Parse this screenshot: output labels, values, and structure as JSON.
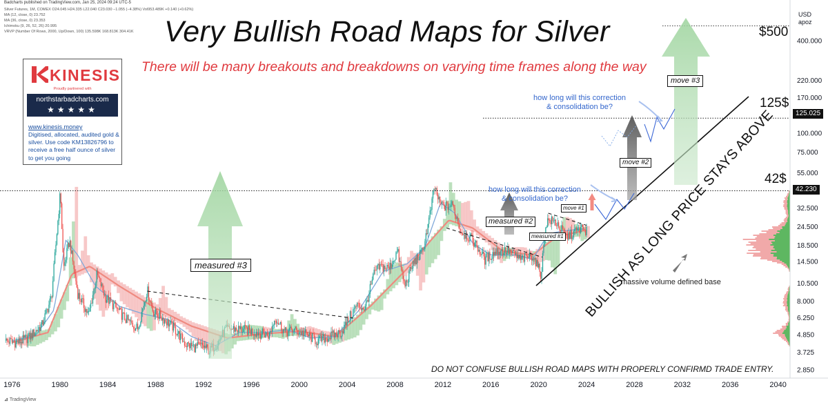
{
  "header": {
    "published": "Badcharts published on TradingView.com, Jan 25, 2024 09:24 UTC-5",
    "symbol_line": "Silver Futures, 1M, COMEX  O24.045 H24.335 L22.040 C23.030 −1.055 (−4.38%) Vol953.489K +0.140 (+0.62%)",
    "ma12": "MA (12, close, 0)  23.752",
    "ma36": "MA (36, close, 0)  23.353",
    "ichimoku": "Ichimoku (9, 26, 52, 26)  20.995",
    "vrvp": "VRVP (Number Of Rows, 2000, Up/Down, 100)  135.598K  168.813K  304.41K"
  },
  "title": "Very Bullish Road Maps for Silver",
  "subtitle": "There will be many breakouts and breakdowns on varying time frames along the way",
  "promo": {
    "brand": "KINESIS",
    "partner": "Proudly partnered with",
    "site": "northstarbadcharts.com",
    "stars": "★★★★★",
    "url": "www.kinesis.money",
    "text": "Digitised, allocated, audited gold & silver. Use code KM13826796 to receive a free half ounce of silver to get you going"
  },
  "annotations": {
    "measured3": "measured #3",
    "measured2": "measured #2",
    "measured1": "measured #1",
    "move1": "move #1",
    "move2": "move #2",
    "move3": "move #3",
    "correction1": "how long will this correction\n& consolidation be?",
    "correction2": "how long will this correction\n& consolidation be?",
    "diag": "BULLISH AS LONG PRICE STAYS ABOVE",
    "volume": "massive volume defined base",
    "disclaimer": "DO NOT CONFUSE BULLISH ROAD MAPS WITH PROPERLY CONFIRMD TRADE ENTRY.",
    "level500": "$500",
    "level125": "125$",
    "level42": "42$"
  },
  "axis": {
    "unit_line1": "USD",
    "unit_line2": "apoz",
    "price_tags": [
      "125.025",
      "42.230"
    ]
  },
  "footer": {
    "tv": "TradingView"
  },
  "colors": {
    "bull": "#26a69a",
    "bear": "#ef5350",
    "cloud_green": "#a5d6a7",
    "cloud_red": "#f4b6b6",
    "ma12": "#7fa8d9",
    "ma36": "#ef8a80",
    "volume_green": "#4caf50",
    "volume_red": "#ef9a9a",
    "accent_red": "#e03a3f",
    "note_blue": "#3366cc"
  },
  "chart_data": {
    "type": "line",
    "title": "Very Bullish Road Maps for Silver",
    "xlabel": "",
    "ylabel": "USD apoz",
    "scale": "log",
    "xlim": [
      1975,
      2041
    ],
    "ylim": [
      2.6,
      700
    ],
    "x_ticks": [
      "1976",
      "1980",
      "1984",
      "1988",
      "1992",
      "1996",
      "2000",
      "2004",
      "2008",
      "2012",
      "2016",
      "2020",
      "2024",
      "2028",
      "2032",
      "2036",
      "2040"
    ],
    "y_ticks": [
      "400.000",
      "220.000",
      "170.000",
      "100.000",
      "75.000",
      "55.000",
      "32.500",
      "24.500",
      "18.500",
      "14.500",
      "10.500",
      "8.000",
      "6.250",
      "4.850",
      "3.725",
      "2.850"
    ],
    "series": [
      {
        "name": "Silver Futures (monthly close)",
        "x": [
          1975.5,
          1976.5,
          1977.5,
          1978.5,
          1979.3,
          1979.8,
          1980.05,
          1980.3,
          1980.8,
          1981.5,
          1982.4,
          1983.1,
          1983.8,
          1984.5,
          1985.5,
          1986.5,
          1987.3,
          1987.8,
          1988.5,
          1989.5,
          1990.5,
          1991.3,
          1991.9,
          1992.5,
          1993.2,
          1993.8,
          1994.5,
          1995.5,
          1996.5,
          1997.5,
          1998.0,
          1998.8,
          1999.5,
          2000.5,
          2001.5,
          2002.5,
          2003.5,
          2004.3,
          2004.8,
          2005.5,
          2006.3,
          2006.8,
          2007.5,
          2008.2,
          2008.8,
          2009.5,
          2010.3,
          2010.8,
          2011.3,
          2011.7,
          2012.3,
          2012.8,
          2013.5,
          2014.5,
          2015.5,
          2016.5,
          2017.5,
          2018.5,
          2019.5,
          2020.2,
          2020.6,
          2020.9,
          2021.5,
          2022.3,
          2022.8,
          2023.5,
          2024.05
        ],
        "values": [
          4.4,
          4.3,
          4.7,
          5.6,
          8.5,
          25,
          42,
          13,
          20,
          9,
          6.5,
          12,
          8.5,
          7.5,
          6.1,
          5.3,
          9.5,
          6.8,
          6.3,
          5.4,
          4.2,
          4.0,
          4.1,
          3.8,
          4.3,
          5.2,
          5.3,
          5.2,
          5.0,
          4.8,
          6.3,
          5.0,
          5.2,
          4.9,
          4.4,
          4.7,
          5.0,
          6.5,
          7.5,
          7.2,
          12.5,
          13.5,
          13.1,
          17,
          10,
          14,
          17,
          26,
          45,
          35,
          33,
          34,
          23,
          20,
          15,
          17,
          17,
          15,
          16,
          12,
          26,
          27,
          26,
          21,
          22,
          24,
          23
        ]
      },
      {
        "name": "MA (12, close, 0)",
        "x": [
          1976,
          1978,
          1979.5,
          1980.5,
          1981.5,
          1983,
          1985,
          1987,
          1989,
          1991,
          1993,
          1995,
          1997,
          1999,
          2001,
          2003,
          2005,
          2007,
          2009,
          2010.5,
          2011.8,
          2013,
          2014.5,
          2016,
          2018,
          2019.5,
          2020.8,
          2022,
          2024
        ],
        "values": [
          4.4,
          4.8,
          7,
          20,
          16,
          10,
          7.4,
          6.6,
          6.1,
          4.7,
          4.1,
          5.0,
          5.0,
          5.2,
          4.6,
          4.7,
          7.0,
          12.5,
          14,
          18,
          35,
          30,
          19,
          16,
          16,
          15,
          22,
          23,
          23.75
        ]
      },
      {
        "name": "MA (36, close, 0)",
        "x": [
          1976,
          1979,
          1981,
          1982.5,
          1985,
          1988,
          1991,
          1994,
          1997,
          2000,
          2003,
          2006,
          2009,
          2011,
          2012.5,
          2014.5,
          2017,
          2019.5,
          2021.5,
          2024
        ],
        "values": [
          4.3,
          5,
          12,
          13.5,
          10,
          7.2,
          5.5,
          4.6,
          4.9,
          5.1,
          4.7,
          7.5,
          13,
          20,
          27,
          24,
          17,
          16,
          21,
          23.35
        ]
      }
    ],
    "annotations": [
      {
        "text": "measured #3",
        "x": 1992.5
      },
      {
        "text": "measured #2",
        "x": 2017.3
      },
      {
        "text": "measured #1",
        "x": 2021.3
      },
      {
        "text": "move #1",
        "x": 2024.3
      },
      {
        "text": "move #2",
        "x": 2026.5
      },
      {
        "text": "move #3",
        "x": 2029.5
      }
    ],
    "levels": [
      500,
      125,
      42
    ],
    "legend": "top-left"
  }
}
